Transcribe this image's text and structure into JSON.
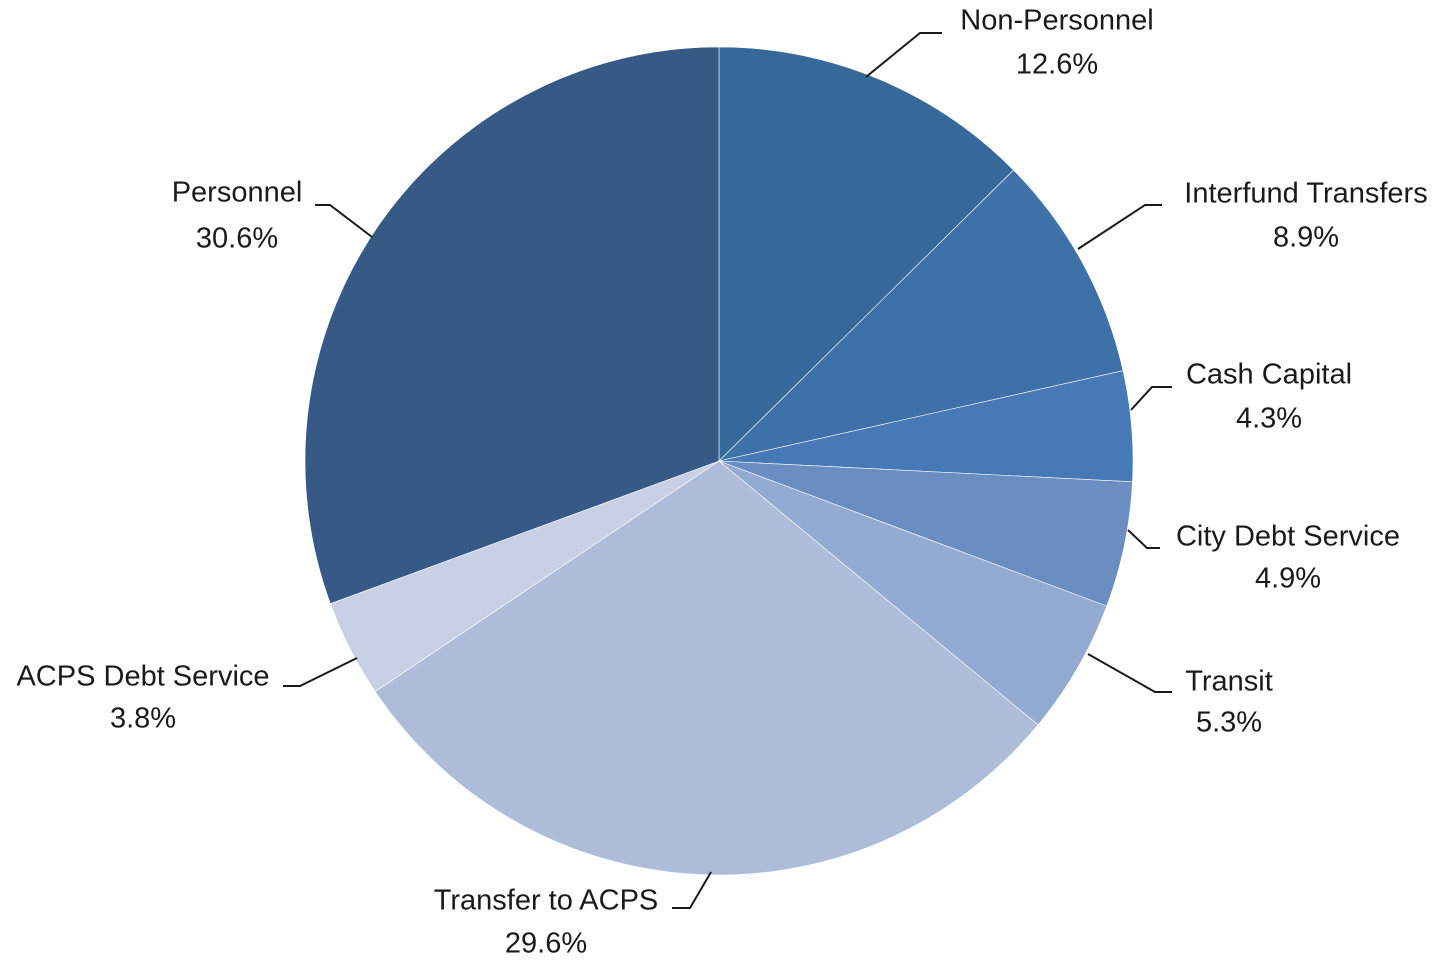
{
  "chart_data": {
    "type": "pie",
    "categories": [
      "Non-Personnel",
      "Interfund Transfers",
      "Cash Capital",
      "City Debt Service",
      "Transit",
      "Transfer to ACPS",
      "ACPS Debt Service",
      "Personnel"
    ],
    "values": [
      12.6,
      8.9,
      4.3,
      4.9,
      5.3,
      29.6,
      3.8,
      30.6
    ],
    "value_labels": [
      "12.6%",
      "8.9%",
      "4.3%",
      "4.9%",
      "5.3%",
      "29.6%",
      "3.8%",
      "30.6%"
    ],
    "colors": [
      "#366899",
      "#3d71a8",
      "#4679b6",
      "#6a8dc2",
      "#93abd0",
      "#adbdd9",
      "#c8d0e6",
      "#365a85"
    ]
  }
}
